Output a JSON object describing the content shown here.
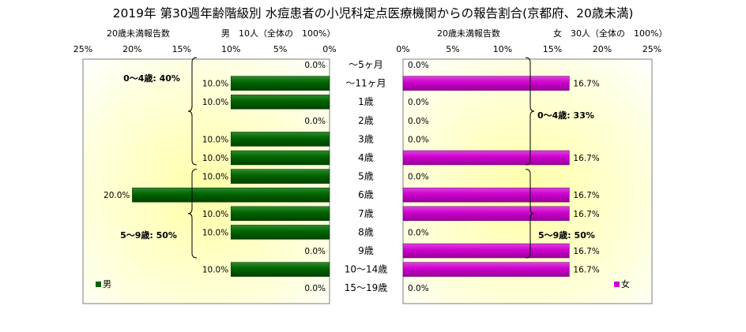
{
  "title": "2019年 第30週年齢階級別 水痘患者の小児科定点医療機関からの報告割合(京都府、20歳未満)",
  "chart_data": {
    "type": "bar",
    "orientation": "horizontal-back-to-back",
    "categories": [
      "～5ヶ月",
      "～11ヶ月",
      "1歳",
      "2歳",
      "3歳",
      "4歳",
      "5歳",
      "6歳",
      "7歳",
      "8歳",
      "9歳",
      "10～14歳",
      "15～19歳"
    ],
    "xlim": [
      0,
      25
    ],
    "x_ticks": [
      "0%",
      "5%",
      "10%",
      "15%",
      "20%",
      "25%"
    ],
    "grid": false,
    "panels": [
      {
        "side": "left",
        "axis_label": "20歳未満報告数",
        "header": "男　10人（全体の　100%）",
        "legend": "男",
        "legend_position": "bottom-left",
        "color": "#006400",
        "values": [
          0.0,
          10.0,
          10.0,
          0.0,
          10.0,
          10.0,
          10.0,
          20.0,
          10.0,
          10.0,
          0.0,
          10.0,
          0.0
        ],
        "labels": [
          "0.0%",
          "10.0%",
          "10.0%",
          "0.0%",
          "10.0%",
          "10.0%",
          "10.0%",
          "20.0%",
          "10.0%",
          "10.0%",
          "0.0%",
          "10.0%",
          "0.0%"
        ],
        "annotations": [
          "0～4歳: 40%",
          "5～9歳: 50%"
        ]
      },
      {
        "side": "right",
        "axis_label": "20歳未満報告数",
        "header": "女　30人（全体の　100%）",
        "legend": "女",
        "legend_position": "bottom-right",
        "color": "#CC00CC",
        "values": [
          0.0,
          16.7,
          0.0,
          0.0,
          0.0,
          16.7,
          0.0,
          16.7,
          16.7,
          0.0,
          16.7,
          16.7,
          0.0
        ],
        "labels": [
          "0.0%",
          "16.7%",
          "0.0%",
          "0.0%",
          "0.0%",
          "16.7%",
          "0.0%",
          "16.7%",
          "16.7%",
          "0.0%",
          "16.7%",
          "16.7%",
          "0.0%"
        ],
        "annotations": [
          "0～4歳: 33%",
          "5～9歳: 50%"
        ]
      }
    ]
  }
}
